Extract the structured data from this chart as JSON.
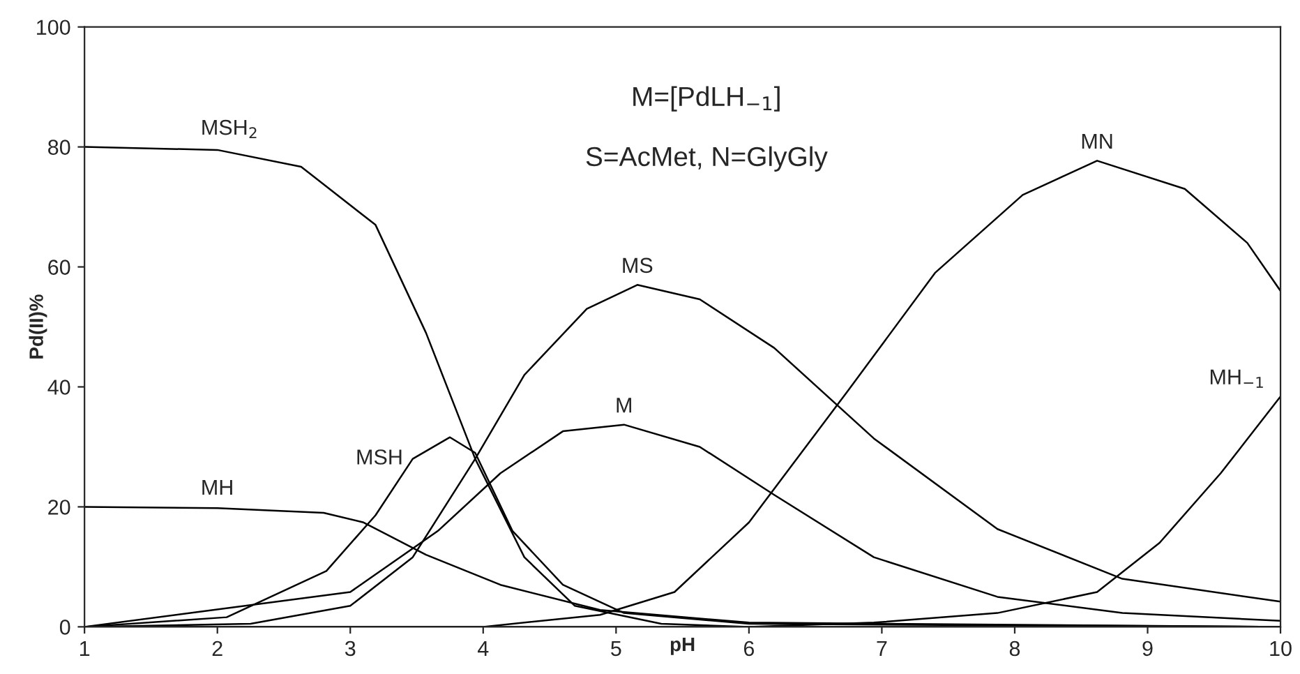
{
  "chart_data": {
    "type": "line",
    "xlabel": "pH",
    "ylabel": "Pd(II)%",
    "xlim": [
      1,
      10
    ],
    "ylim": [
      0,
      100
    ],
    "xticks": [
      1,
      2,
      3,
      4,
      5,
      6,
      7,
      8,
      9,
      10
    ],
    "yticks": [
      0,
      20,
      40,
      60,
      80,
      100
    ],
    "grid": false,
    "legend": false,
    "marker": "none",
    "line_style": "solid",
    "series": [
      {
        "name": "MSH$_{2}$",
        "color": "#000000",
        "x": [
          1,
          2,
          2.63,
          3.19,
          3.57,
          3.94,
          4.31,
          4.69,
          5.34,
          6,
          10
        ],
        "values": [
          80,
          79.5,
          76.7,
          67,
          49,
          28,
          11.6,
          3.5,
          0.5,
          0,
          0
        ]
      },
      {
        "name": "MH",
        "color": "#000000",
        "x": [
          1,
          2,
          2.8,
          3.1,
          3.57,
          4.13,
          4.88,
          6,
          10
        ],
        "values": [
          20,
          19.8,
          19,
          17.4,
          12,
          7,
          2.8,
          0.7,
          0
        ]
      },
      {
        "name": "MSH",
        "color": "#000000",
        "x": [
          1,
          2.07,
          2.82,
          3.19,
          3.47,
          3.75,
          3.94,
          4.22,
          4.6,
          5.06,
          6,
          10
        ],
        "values": [
          0,
          1.6,
          9.3,
          18.6,
          28,
          31.6,
          29,
          16,
          7,
          2.3,
          0.5,
          0
        ]
      },
      {
        "name": "MS",
        "color": "#000000",
        "x": [
          1,
          2.25,
          3,
          3.47,
          3.94,
          4.31,
          4.78,
          5.16,
          5.63,
          6.19,
          6.94,
          7.87,
          8.81,
          10
        ],
        "values": [
          0,
          0.5,
          3.5,
          11.6,
          28,
          42,
          53,
          57,
          54.6,
          46.5,
          31.4,
          16.3,
          8,
          4.2
        ]
      },
      {
        "name": "M",
        "color": "#000000",
        "x": [
          1,
          3,
          3.66,
          4.13,
          4.6,
          5.06,
          5.63,
          6.19,
          6.94,
          7.87,
          8.81,
          10
        ],
        "values": [
          0,
          5.8,
          16,
          25.6,
          32.6,
          33.7,
          30,
          22,
          11.6,
          5,
          2.3,
          1
        ]
      },
      {
        "name": "MN",
        "color": "#000000",
        "x": [
          1,
          4,
          4.88,
          5.44,
          6,
          6.75,
          7.4,
          8.06,
          8.62,
          9.28,
          9.75,
          10
        ],
        "values": [
          0,
          0,
          2,
          5.8,
          17.4,
          39.5,
          59,
          72,
          77.7,
          73,
          64,
          56
        ]
      },
      {
        "name": "MH$_{−1}$",
        "color": "#000000",
        "x": [
          1,
          6,
          6.94,
          7.87,
          8.62,
          9.09,
          9.55,
          10
        ],
        "values": [
          0,
          0,
          0.7,
          2.3,
          5.8,
          14,
          25.6,
          38.4
        ]
      }
    ],
    "annotations": [
      "M=[PdLH$_{−1}$]",
      "S=AcMet, N=GlyGly"
    ]
  }
}
